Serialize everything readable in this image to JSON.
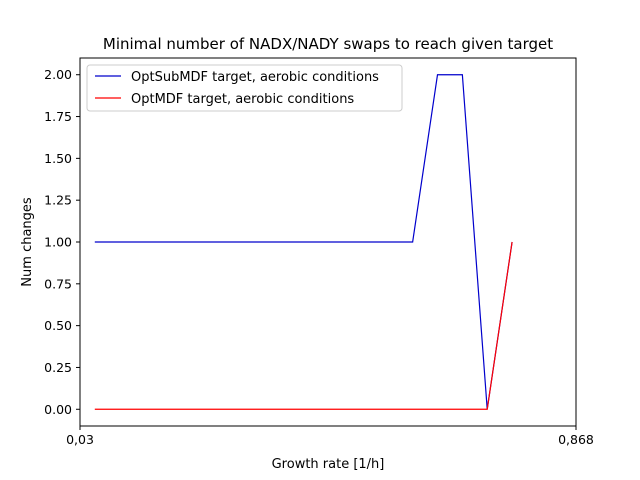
{
  "chart_data": {
    "type": "line",
    "title": "Minimal number of NADX/NADY swaps to reach given target",
    "xlabel": "Growth rate [1/h]",
    "ylabel": "Num changes",
    "x_tick_labels": [
      "0,03",
      "0,868"
    ],
    "xlim": [
      0.03,
      0.868
    ],
    "ylim": [
      -0.1,
      2.1
    ],
    "y_ticks": [
      0.0,
      0.25,
      0.5,
      0.75,
      1.0,
      1.25,
      1.5,
      1.75,
      2.0
    ],
    "y_tick_labels": [
      "0.00",
      "0.25",
      "0.50",
      "0.75",
      "1.00",
      "1.25",
      "1.50",
      "1.75",
      "2.00"
    ],
    "grid": false,
    "legend_position": "top-left",
    "x": [
      0.055,
      0.1,
      0.15,
      0.2,
      0.25,
      0.3,
      0.35,
      0.4,
      0.45,
      0.5,
      0.55,
      0.592,
      0.634,
      0.676,
      0.718,
      0.76
    ],
    "series": [
      {
        "name": "OptSubMDF target, aerobic conditions",
        "color": "#0000cc",
        "values": [
          1,
          1,
          1,
          1,
          1,
          1,
          1,
          1,
          1,
          1,
          1,
          1,
          2,
          2,
          0,
          1
        ]
      },
      {
        "name": "OptMDF target, aerobic conditions",
        "color": "#ff0000",
        "values": [
          0,
          0,
          0,
          0,
          0,
          0,
          0,
          0,
          0,
          0,
          0,
          0,
          0,
          0,
          0,
          1
        ]
      }
    ]
  }
}
